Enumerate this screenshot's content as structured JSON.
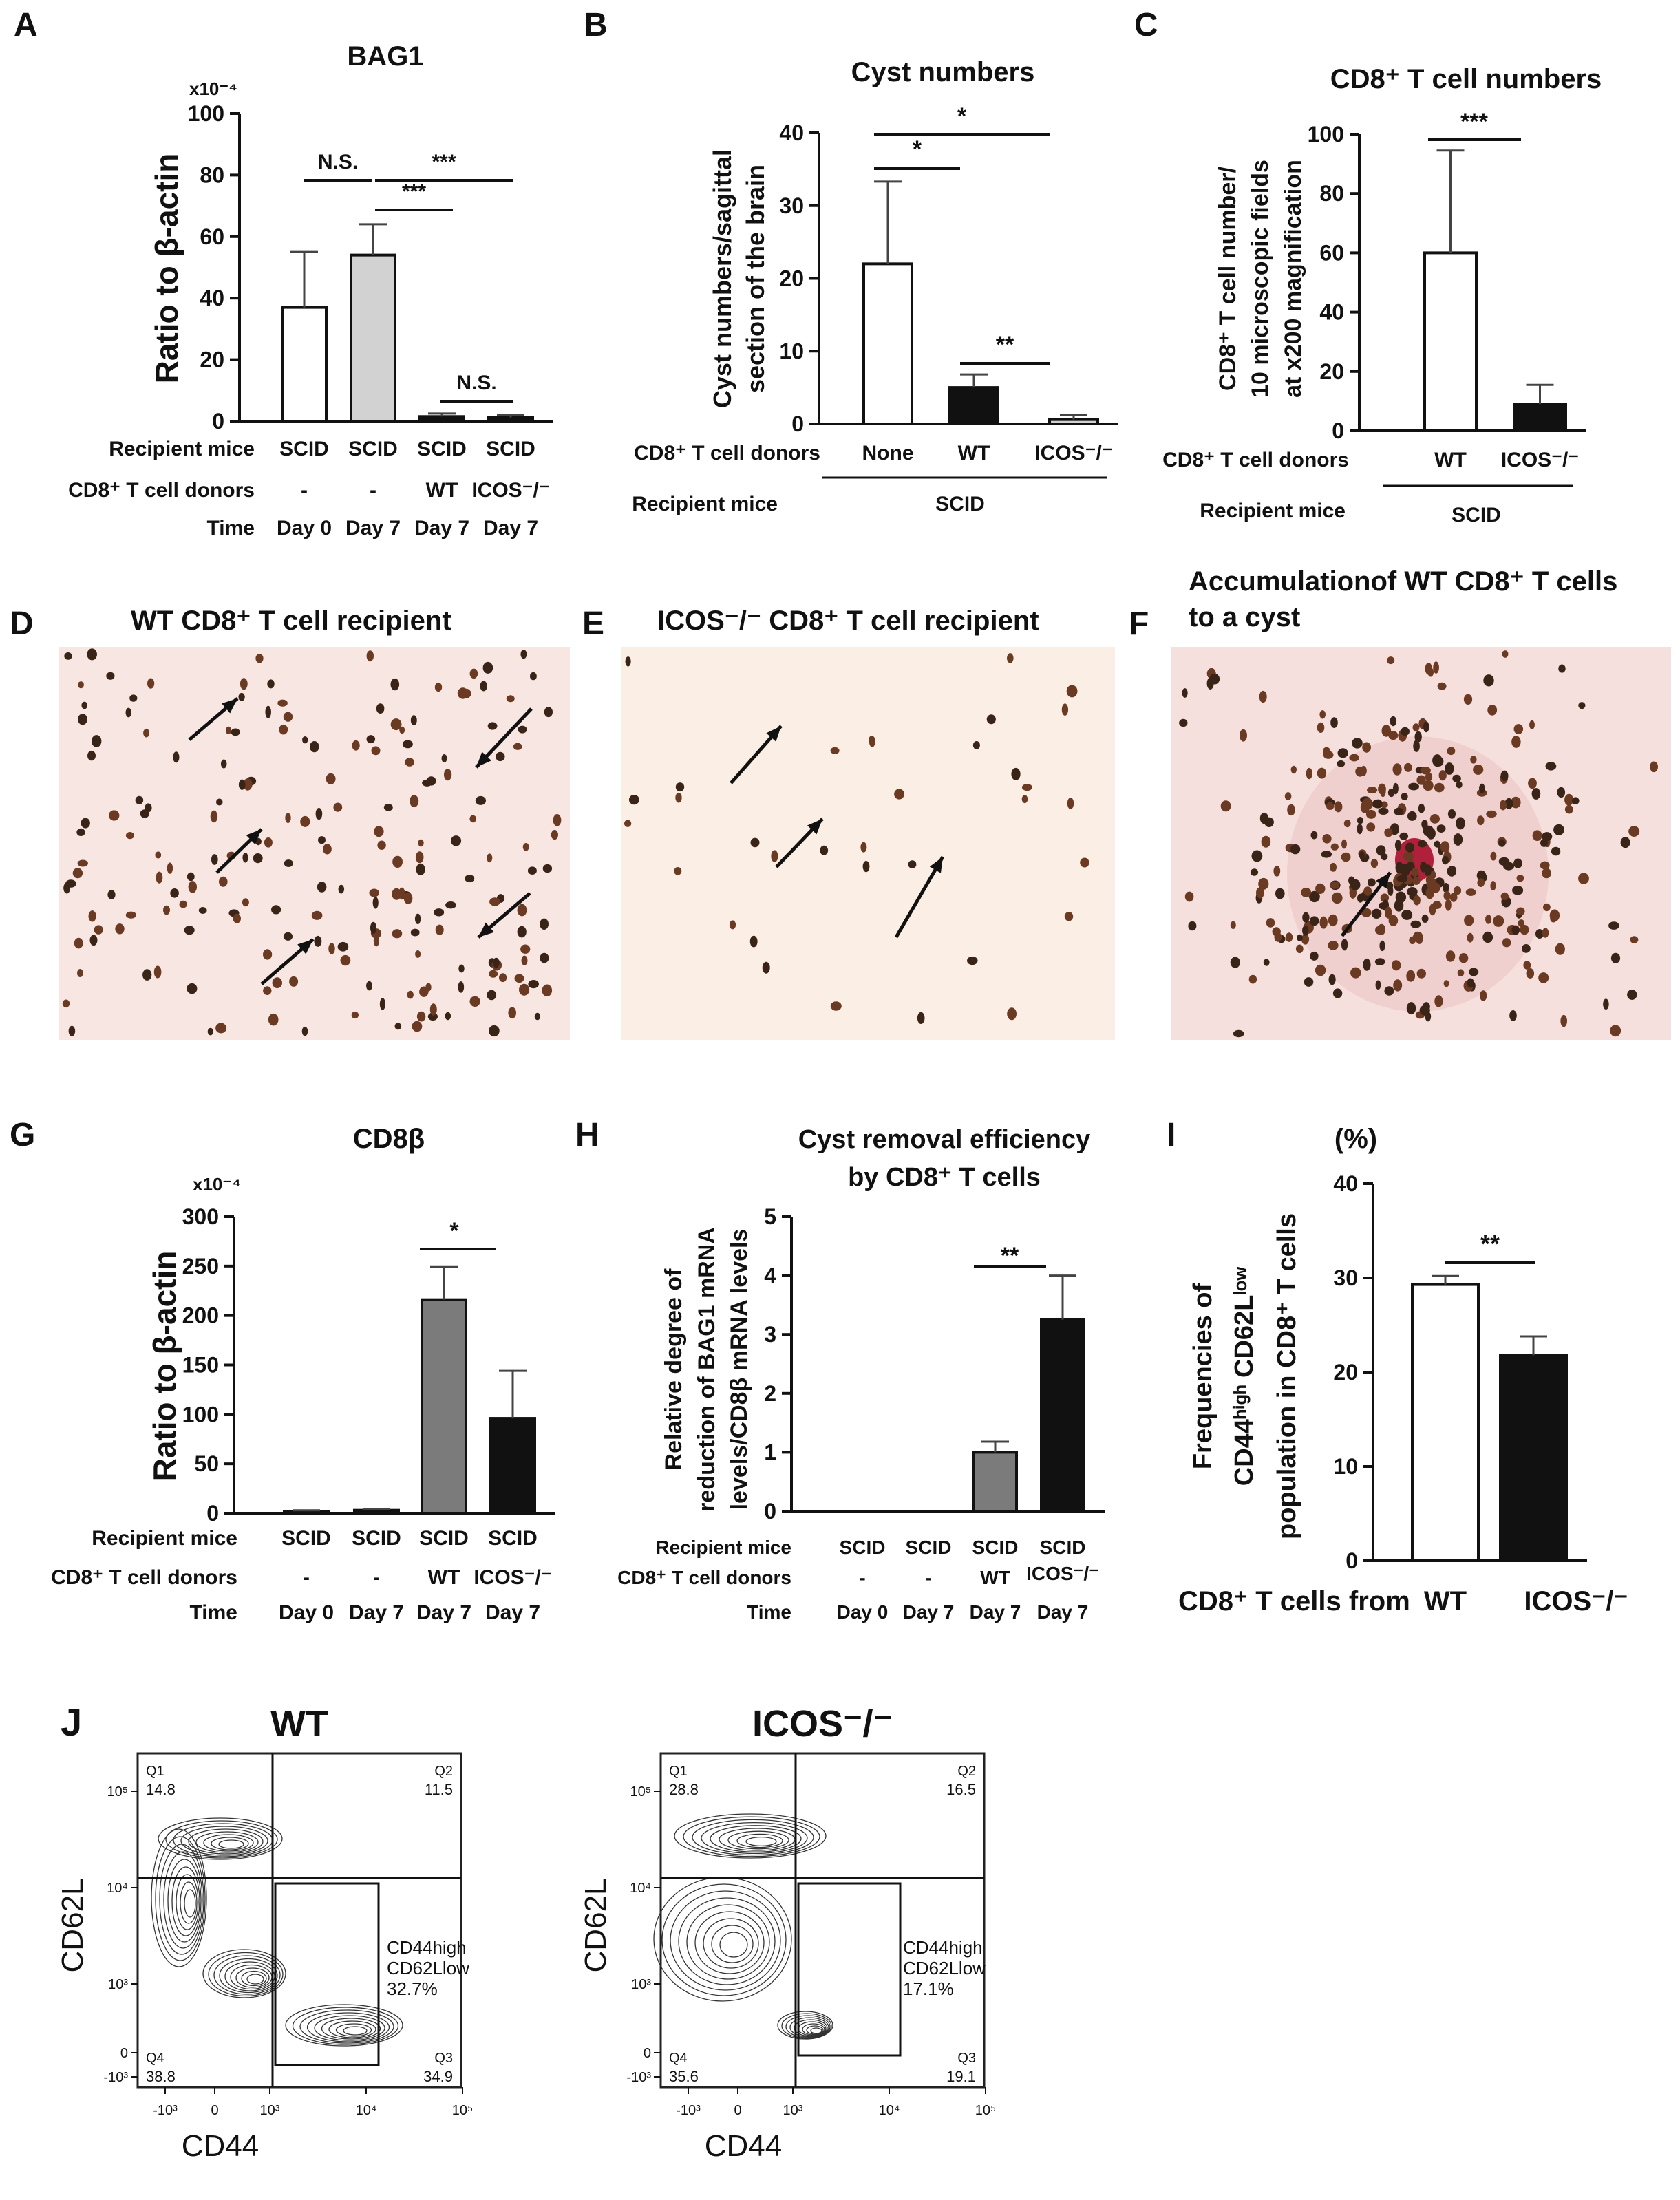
{
  "panels": {
    "A": {
      "letter": "A"
    },
    "B": {
      "letter": "B"
    },
    "C": {
      "letter": "C"
    },
    "D": {
      "letter": "D",
      "title": "WT CD8⁺ T cell recipient"
    },
    "E": {
      "letter": "E",
      "title": "ICOS⁻/⁻  CD8⁺ T cell recipient"
    },
    "F": {
      "letter": "F",
      "title_line1": "Accumulationof WT CD8⁺ T cells",
      "title_line2": "to a cyst"
    },
    "G": {
      "letter": "G"
    },
    "H": {
      "letter": "H"
    },
    "I": {
      "letter": "I"
    },
    "J": {
      "letter": "J"
    }
  },
  "chart_data": [
    {
      "id": "A",
      "type": "bar",
      "title": "BAG1",
      "ylabel": "Ratio to β-actin",
      "scale_label": "x10⁻⁴",
      "ylim": [
        0,
        100
      ],
      "yticks": [
        0,
        20,
        40,
        60,
        80,
        100
      ],
      "categories": [
        "SCID Day 0",
        "SCID Day 7",
        "SCID WT Day 7",
        "SCID ICOS-/- Day 7"
      ],
      "values": [
        37,
        54,
        1.5,
        1.2
      ],
      "errors": [
        18,
        10,
        1,
        0.8
      ],
      "fills": [
        "#ffffff",
        "#d2d2d2",
        "#111111",
        "#111111"
      ],
      "row_labels": [
        "Recipient mice",
        "CD8⁺ T cell donors",
        "Time"
      ],
      "rows": [
        [
          "SCID",
          "SCID",
          "SCID",
          "SCID"
        ],
        [
          "-",
          "-",
          "WT",
          "ICOS⁻/⁻"
        ],
        [
          "Day 0",
          "Day 7",
          "Day 7",
          "Day 7"
        ]
      ],
      "significance": [
        {
          "pair": [
            0,
            1
          ],
          "label": "N.S."
        },
        {
          "pair": [
            1,
            2
          ],
          "label": "***"
        },
        {
          "pair": [
            1,
            3
          ],
          "label": "***"
        },
        {
          "pair": [
            2,
            3
          ],
          "label": "N.S."
        }
      ]
    },
    {
      "id": "B",
      "type": "bar",
      "title": "Cyst numbers",
      "ylabel_lines": [
        "Cyst numbers/sagittal",
        "section of the brain"
      ],
      "ylim": [
        0,
        40
      ],
      "yticks": [
        0,
        10,
        20,
        30,
        40
      ],
      "categories": [
        "None",
        "WT",
        "ICOS-/-"
      ],
      "values": [
        22,
        5,
        0.6
      ],
      "errors": [
        11.3,
        1.8,
        0.6
      ],
      "fills": [
        "#ffffff",
        "#111111",
        "#d2d2d2"
      ],
      "row_labels": [
        "CD8⁺ T cell donors",
        "Recipient mice"
      ],
      "tick_labels": [
        "None",
        "WT",
        "ICOS⁻/⁻"
      ],
      "group_label": "SCID",
      "significance": [
        {
          "pair": [
            0,
            1
          ],
          "label": "*"
        },
        {
          "pair": [
            0,
            2
          ],
          "label": "*"
        },
        {
          "pair": [
            1,
            2
          ],
          "label": "**"
        }
      ]
    },
    {
      "id": "C",
      "type": "bar",
      "title": "CD8⁺ T cell numbers",
      "ylabel_lines": [
        "CD8⁺ T cell number/",
        "10 microscopic fields",
        "at x200 magnification"
      ],
      "ylim": [
        0,
        100
      ],
      "yticks": [
        0,
        20,
        40,
        60,
        80,
        100
      ],
      "categories": [
        "WT",
        "ICOS-/-"
      ],
      "values": [
        60,
        9
      ],
      "errors": [
        34.5,
        6.5
      ],
      "fills": [
        "#ffffff",
        "#111111"
      ],
      "row_labels": [
        "CD8⁺ T cell donors",
        "Recipient mice"
      ],
      "tick_labels": [
        "WT",
        "ICOS⁻/⁻"
      ],
      "group_label": "SCID",
      "significance": [
        {
          "pair": [
            0,
            1
          ],
          "label": "***"
        }
      ]
    },
    {
      "id": "G",
      "type": "bar",
      "title": "CD8β",
      "ylabel": "Ratio to β-actin",
      "scale_label": "x10⁻⁴",
      "ylim": [
        0,
        300
      ],
      "yticks": [
        0,
        50,
        100,
        150,
        200,
        250,
        300
      ],
      "categories": [
        "SCID Day 0",
        "SCID Day 7",
        "SCID WT Day 7",
        "SCID ICOS-/- Day 7"
      ],
      "values": [
        2,
        3,
        216,
        96
      ],
      "errors": [
        1,
        1.5,
        33,
        48
      ],
      "fills": [
        "#111111",
        "#111111",
        "#7b7b7b",
        "#111111"
      ],
      "row_labels": [
        "Recipient mice",
        "CD8⁺ T cell donors",
        "Time"
      ],
      "rows": [
        [
          "SCID",
          "SCID",
          "SCID",
          "SCID"
        ],
        [
          "-",
          "-",
          "WT",
          "ICOS⁻/⁻"
        ],
        [
          "Day 0",
          "Day 7",
          "Day 7",
          "Day 7"
        ]
      ],
      "significance": [
        {
          "pair": [
            2,
            3
          ],
          "label": "*"
        }
      ]
    },
    {
      "id": "H",
      "type": "bar",
      "title_lines": [
        "Cyst removal efficiency",
        "by CD8⁺ T cells"
      ],
      "ylabel_lines": [
        "Relative degree of",
        "reduction of BAG1 mRNA",
        "levels/CD8β mRNA levels"
      ],
      "ylim": [
        0,
        5
      ],
      "yticks": [
        0,
        1,
        2,
        3,
        4,
        5
      ],
      "categories": [
        "SCID Day 0",
        "SCID Day 7",
        "SCID WT Day 7",
        "SCID ICOS-/- Day 7"
      ],
      "values": [
        0,
        0,
        1.0,
        3.25
      ],
      "errors": [
        0,
        0,
        0.18,
        0.75
      ],
      "fills": [
        "#ffffff",
        "#ffffff",
        "#7b7b7b",
        "#111111"
      ],
      "row_labels": [
        "Recipient mice",
        "CD8⁺ T cell donors",
        "Time"
      ],
      "rows": [
        [
          "SCID",
          "SCID",
          "SCID",
          "SCID"
        ],
        [
          "-",
          "-",
          "WT",
          "ICOS⁻/⁻"
        ],
        [
          "Day 0",
          "Day 7",
          "Day 7",
          "Day 7"
        ]
      ],
      "significance": [
        {
          "pair": [
            2,
            3
          ],
          "label": "**"
        }
      ]
    },
    {
      "id": "I",
      "type": "bar",
      "unit": "(%)",
      "ylabel_lines": [
        "Frequencies of",
        "CD44ʰⁱᵍʰ CD62Lˡᵒʷ",
        "population in CD8⁺ T cells"
      ],
      "ylim": [
        0,
        40
      ],
      "yticks": [
        0,
        10,
        20,
        30,
        40
      ],
      "categories": [
        "WT",
        "ICOS-/-"
      ],
      "values": [
        29.3,
        21.8
      ],
      "errors": [
        0.9,
        2.0
      ],
      "fills": [
        "#ffffff",
        "#111111"
      ],
      "xlabel": "CD8⁺ T cells from",
      "tick_labels": [
        "WT",
        "ICOS⁻/⁻"
      ],
      "significance": [
        {
          "pair": [
            0,
            1
          ],
          "label": "**"
        }
      ]
    },
    {
      "id": "J1",
      "type": "scatter",
      "subtype": "flow-cytometry-contour",
      "title": "WT",
      "xlabel": "CD44",
      "ylabel": "CD62L",
      "xticks": [
        "-10³",
        "0",
        "10³",
        "10⁴",
        "10⁵"
      ],
      "yticks": [
        "10⁵",
        "10⁴",
        "10³",
        "0",
        "-10³"
      ],
      "quadrants": [
        {
          "name": "Q1",
          "value": "14.8"
        },
        {
          "name": "Q2",
          "value": "11.5"
        },
        {
          "name": "Q3",
          "value": "34.9"
        },
        {
          "name": "Q4",
          "value": "38.8"
        }
      ],
      "gate": {
        "line1": "CD44high",
        "line2": "CD62Llow",
        "value": "32.7%"
      }
    },
    {
      "id": "J2",
      "type": "scatter",
      "subtype": "flow-cytometry-contour",
      "title": "ICOS⁻/⁻",
      "xlabel": "CD44",
      "ylabel": "CD62L",
      "xticks": [
        "-10³",
        "0",
        "10³",
        "10⁴",
        "10⁵"
      ],
      "yticks": [
        "10⁵",
        "10⁴",
        "10³",
        "0",
        "-10³"
      ],
      "quadrants": [
        {
          "name": "Q1",
          "value": "28.8"
        },
        {
          "name": "Q2",
          "value": "16.5"
        },
        {
          "name": "Q3",
          "value": "19.1"
        },
        {
          "name": "Q4",
          "value": "35.6"
        }
      ],
      "gate": {
        "line1": "CD44high",
        "line2": "CD62Llow",
        "value": "17.1%"
      }
    }
  ]
}
